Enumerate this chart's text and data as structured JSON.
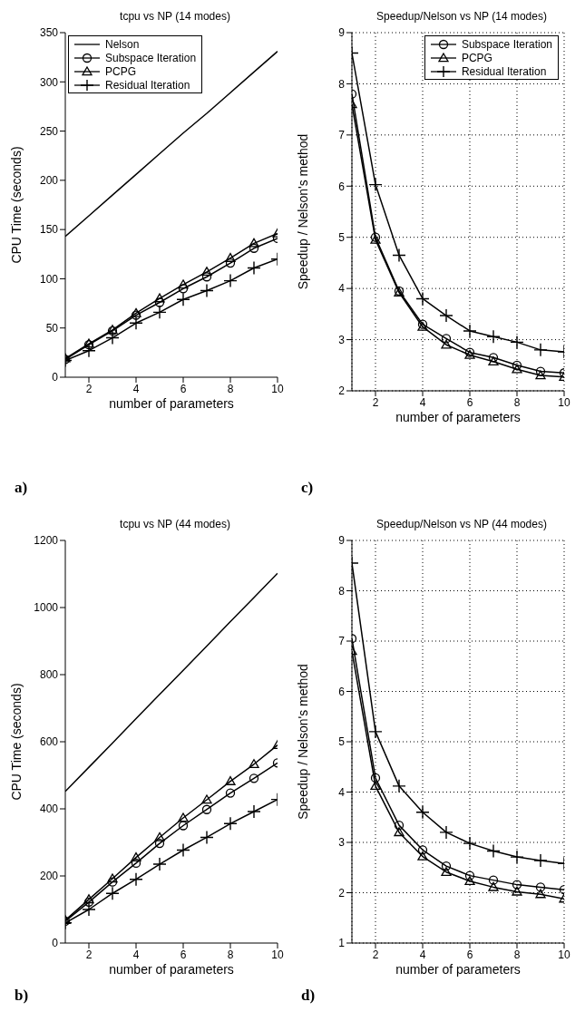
{
  "chart_data": [
    {
      "type": "line",
      "title": "tcpu vs NP (14 modes)",
      "xlabel": "number of parameters",
      "ylabel": "CPU Time (seconds)",
      "annotations": [
        "a)"
      ],
      "x": [
        1,
        2,
        3,
        4,
        5,
        6,
        7,
        8,
        9,
        10
      ],
      "xlim": [
        1,
        10
      ],
      "xticks": [
        2,
        4,
        6,
        8,
        10
      ],
      "ylim": [
        0,
        350
      ],
      "yticks": [
        0,
        50,
        100,
        150,
        200,
        250,
        300,
        350
      ],
      "grid": false,
      "legend": "top left",
      "series": [
        {
          "name": "Nelson",
          "color": "#000000",
          "marker": "none",
          "values": [
            143,
            164,
            185,
            206,
            227,
            248,
            268,
            289,
            310,
            331
          ]
        },
        {
          "name": "Subspace Iteration",
          "color": "#000000",
          "marker": "circle",
          "values": [
            18,
            33,
            47,
            63,
            76,
            90,
            102,
            116,
            131,
            141
          ]
        },
        {
          "name": "PCPG",
          "color": "#000000",
          "marker": "triangle",
          "values": [
            19,
            34,
            48,
            65,
            80,
            94,
            107,
            121,
            136,
            146
          ]
        },
        {
          "name": "Residual Iteration",
          "color": "#000000",
          "marker": "cross",
          "values": [
            17,
            27,
            40,
            55,
            66,
            79,
            88,
            98,
            111,
            120
          ]
        }
      ]
    },
    {
      "type": "line",
      "title": "Speedup/Nelson vs NP (14 modes)",
      "xlabel": "number of parameters",
      "ylabel": "Speedup /  Nelson's method",
      "annotations": [
        "c)"
      ],
      "x": [
        1,
        2,
        3,
        4,
        5,
        6,
        7,
        8,
        9,
        10
      ],
      "xlim": [
        1,
        10
      ],
      "xticks": [
        2,
        4,
        6,
        8,
        10
      ],
      "ylim": [
        2,
        9
      ],
      "yticks": [
        2,
        3,
        4,
        5,
        6,
        7,
        8,
        9
      ],
      "grid": true,
      "legend": "top right",
      "series": [
        {
          "name": "Subspace Iteration",
          "color": "#000000",
          "marker": "circle",
          "values": [
            7.8,
            5.0,
            3.95,
            3.3,
            3.02,
            2.75,
            2.65,
            2.5,
            2.38,
            2.35
          ]
        },
        {
          "name": "PCPG",
          "color": "#000000",
          "marker": "triangle",
          "values": [
            7.6,
            4.95,
            3.92,
            3.25,
            2.9,
            2.7,
            2.57,
            2.42,
            2.3,
            2.27
          ]
        },
        {
          "name": "Residual Iteration",
          "color": "#000000",
          "marker": "cross",
          "values": [
            8.6,
            6.03,
            4.65,
            3.8,
            3.47,
            3.17,
            3.06,
            2.95,
            2.8,
            2.76
          ]
        }
      ]
    },
    {
      "type": "line",
      "title": "tcpu vs NP (44 modes)",
      "xlabel": "number of parameters",
      "ylabel": "CPU Time (seconds)",
      "annotations": [
        "b)"
      ],
      "x": [
        1,
        2,
        3,
        4,
        5,
        6,
        7,
        8,
        9,
        10
      ],
      "xlim": [
        1,
        10
      ],
      "xticks": [
        2,
        4,
        6,
        8,
        10
      ],
      "ylim": [
        0,
        1200
      ],
      "yticks": [
        0,
        200,
        400,
        600,
        800,
        1000,
        1200
      ],
      "grid": false,
      "series": [
        {
          "color": "#000000",
          "marker": "none",
          "values": [
            452,
            524,
            596,
            669,
            741,
            813,
            885,
            958,
            1030,
            1102
          ]
        },
        {
          "color": "#000000",
          "marker": "circle",
          "values": [
            65,
            122,
            182,
            238,
            297,
            350,
            398,
            447,
            491,
            537
          ]
        },
        {
          "color": "#000000",
          "marker": "triangle",
          "values": [
            68,
            130,
            192,
            255,
            315,
            373,
            427,
            482,
            533,
            590
          ]
        },
        {
          "color": "#000000",
          "marker": "cross",
          "values": [
            60,
            100,
            148,
            190,
            235,
            277,
            315,
            356,
            392,
            428
          ]
        }
      ]
    },
    {
      "type": "line",
      "title": "Speedup/Nelson vs NP (44 modes)",
      "xlabel": "number of parameters",
      "ylabel": "Speedup /  Nelson's method",
      "annotations": [
        "d)"
      ],
      "x": [
        1,
        2,
        3,
        4,
        5,
        6,
        7,
        8,
        9,
        10
      ],
      "xlim": [
        1,
        10
      ],
      "xticks": [
        2,
        4,
        6,
        8,
        10
      ],
      "ylim": [
        1,
        9
      ],
      "yticks": [
        1,
        2,
        3,
        4,
        5,
        6,
        7,
        8,
        9
      ],
      "grid": true,
      "series": [
        {
          "color": "#000000",
          "marker": "circle",
          "values": [
            7.05,
            4.28,
            3.34,
            2.85,
            2.53,
            2.34,
            2.25,
            2.16,
            2.11,
            2.06
          ]
        },
        {
          "color": "#000000",
          "marker": "triangle",
          "values": [
            6.8,
            4.12,
            3.2,
            2.72,
            2.41,
            2.23,
            2.11,
            2.02,
            1.97,
            1.88
          ]
        },
        {
          "color": "#000000",
          "marker": "cross",
          "values": [
            8.55,
            5.2,
            4.12,
            3.6,
            3.2,
            2.98,
            2.83,
            2.71,
            2.64,
            2.58
          ]
        }
      ]
    }
  ]
}
